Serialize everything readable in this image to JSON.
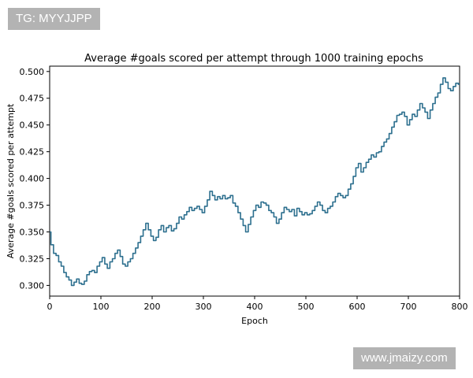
{
  "badges": {
    "top": "TG: MYYJJPP",
    "bottom": "www.jmaizy.com"
  },
  "colors": {
    "line": "#2c6f8e",
    "badge_bg": "#b3b3b3"
  },
  "chart_data": {
    "type": "line",
    "title": "Average #goals scored per attempt through 1000 training epochs",
    "xlabel": "Epoch",
    "ylabel": "Average #goals scored per attempt",
    "xlim": [
      0,
      800
    ],
    "ylim": [
      0.29,
      0.505
    ],
    "xticks": [
      0,
      100,
      200,
      300,
      400,
      500,
      600,
      700,
      800
    ],
    "yticks": [
      0.3,
      0.325,
      0.35,
      0.375,
      0.4,
      0.425,
      0.45,
      0.475,
      0.5
    ],
    "grid": false,
    "series": [
      {
        "x": [
          0,
          5,
          10,
          15,
          20,
          25,
          30,
          35,
          40,
          45,
          50,
          55,
          60,
          65,
          70,
          75,
          80,
          85,
          90,
          95,
          100,
          105,
          110,
          115,
          120,
          125,
          130,
          135,
          140,
          145,
          150,
          155,
          160,
          165,
          170,
          175,
          180,
          185,
          190,
          195,
          200,
          205,
          210,
          215,
          220,
          225,
          230,
          235,
          240,
          245,
          250,
          255,
          260,
          265,
          270,
          275,
          280,
          285,
          290,
          295,
          300,
          305,
          310,
          315,
          320,
          325,
          330,
          335,
          340,
          345,
          350,
          355,
          360,
          365,
          370,
          375,
          380,
          385,
          390,
          395,
          400,
          405,
          410,
          415,
          420,
          425,
          430,
          435,
          440,
          445,
          450,
          455,
          460,
          465,
          470,
          475,
          480,
          485,
          490,
          495,
          500,
          505,
          510,
          515,
          520,
          525,
          530,
          535,
          540,
          545,
          550,
          555,
          560,
          565,
          570,
          575,
          580,
          585,
          590,
          595,
          600,
          605,
          610,
          615,
          620,
          625,
          630,
          635,
          640,
          645,
          650,
          655,
          660,
          665,
          670,
          675,
          680,
          685,
          690,
          695,
          700,
          705,
          710,
          715,
          720,
          725,
          730,
          735,
          740,
          745,
          750,
          755,
          760,
          765,
          770,
          775,
          780,
          785,
          790,
          795,
          800
        ],
        "values": [
          0.35,
          0.338,
          0.33,
          0.328,
          0.322,
          0.318,
          0.312,
          0.308,
          0.305,
          0.3,
          0.303,
          0.306,
          0.302,
          0.301,
          0.304,
          0.31,
          0.313,
          0.314,
          0.312,
          0.318,
          0.322,
          0.326,
          0.32,
          0.316,
          0.322,
          0.325,
          0.33,
          0.333,
          0.327,
          0.32,
          0.318,
          0.322,
          0.325,
          0.33,
          0.335,
          0.34,
          0.346,
          0.352,
          0.358,
          0.352,
          0.346,
          0.342,
          0.345,
          0.352,
          0.356,
          0.35,
          0.354,
          0.356,
          0.351,
          0.353,
          0.358,
          0.364,
          0.362,
          0.366,
          0.369,
          0.373,
          0.37,
          0.372,
          0.374,
          0.371,
          0.368,
          0.374,
          0.38,
          0.388,
          0.384,
          0.38,
          0.383,
          0.381,
          0.384,
          0.381,
          0.382,
          0.384,
          0.377,
          0.374,
          0.368,
          0.362,
          0.356,
          0.35,
          0.357,
          0.364,
          0.37,
          0.375,
          0.373,
          0.378,
          0.377,
          0.375,
          0.37,
          0.368,
          0.364,
          0.358,
          0.362,
          0.368,
          0.373,
          0.371,
          0.369,
          0.371,
          0.365,
          0.372,
          0.369,
          0.366,
          0.368,
          0.366,
          0.367,
          0.37,
          0.374,
          0.378,
          0.375,
          0.37,
          0.368,
          0.372,
          0.374,
          0.378,
          0.383,
          0.386,
          0.384,
          0.382,
          0.384,
          0.39,
          0.395,
          0.402,
          0.41,
          0.414,
          0.406,
          0.41,
          0.415,
          0.418,
          0.422,
          0.42,
          0.424,
          0.425,
          0.43,
          0.434,
          0.437,
          0.442,
          0.448,
          0.453,
          0.459,
          0.46,
          0.462,
          0.458,
          0.45,
          0.455,
          0.46,
          0.458,
          0.464,
          0.47,
          0.466,
          0.462,
          0.456,
          0.464,
          0.47,
          0.476,
          0.48,
          0.488,
          0.494,
          0.49,
          0.484,
          0.482,
          0.486,
          0.489,
          0.488
        ]
      }
    ]
  }
}
